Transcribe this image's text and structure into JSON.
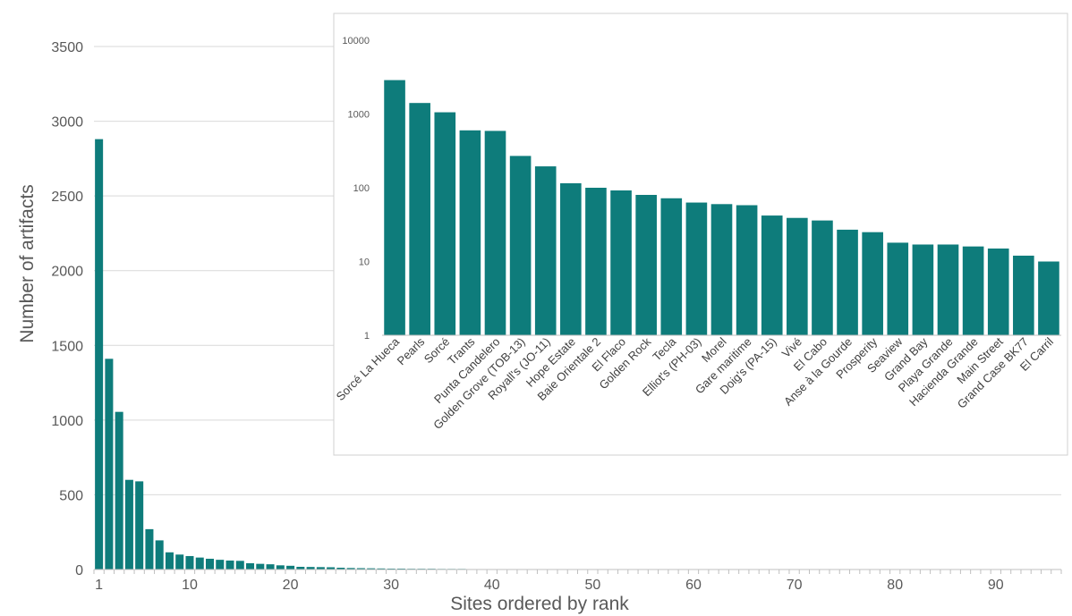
{
  "chart_data": [
    {
      "type": "bar",
      "title": "",
      "xlabel": "Sites ordered by rank",
      "ylabel": "Number of artifacts",
      "ylim": [
        0,
        3500
      ],
      "yticks": [
        0,
        500,
        1000,
        1500,
        2000,
        2500,
        3000,
        3500
      ],
      "xticks": [
        1,
        10,
        20,
        30,
        40,
        50,
        60,
        70,
        80,
        90
      ],
      "grid": "horizontal",
      "legend": "none",
      "color": "#0E7C7B",
      "x": [
        1,
        2,
        3,
        4,
        5,
        6,
        7,
        8,
        9,
        10,
        11,
        12,
        13,
        14,
        15,
        16,
        17,
        18,
        19,
        20,
        21,
        22,
        23,
        24,
        25,
        26,
        27,
        28,
        29,
        30,
        31,
        32,
        33,
        34,
        35,
        36,
        37,
        38,
        39,
        40,
        41,
        42,
        43,
        44,
        45,
        46,
        47,
        48,
        49,
        50,
        51,
        52,
        53,
        54,
        55,
        56,
        57,
        58,
        59,
        60,
        61,
        62,
        63,
        64,
        65,
        66,
        67,
        68,
        69,
        70,
        71,
        72,
        73,
        74,
        75,
        76,
        77,
        78,
        79,
        80,
        81,
        82,
        83,
        84,
        85,
        86,
        87,
        88,
        89,
        90,
        91,
        92,
        93,
        94,
        95,
        96
      ],
      "values": [
        2880,
        1410,
        1055,
        600,
        590,
        270,
        195,
        115,
        100,
        90,
        80,
        72,
        65,
        60,
        58,
        42,
        38,
        35,
        28,
        25,
        18,
        17,
        16,
        15,
        12,
        10,
        9,
        8,
        7,
        6,
        6,
        5,
        5,
        5,
        4,
        4,
        4,
        3,
        3,
        3,
        3,
        3,
        2,
        2,
        2,
        2,
        2,
        2,
        2,
        2,
        2,
        2,
        1,
        1,
        1,
        1,
        1,
        1,
        1,
        1,
        1,
        1,
        1,
        1,
        1,
        1,
        1,
        1,
        1,
        1,
        1,
        1,
        1,
        1,
        1,
        1,
        1,
        1,
        1,
        1,
        1,
        1,
        1,
        1,
        1,
        1,
        1,
        1,
        1,
        1,
        1,
        1,
        1,
        1,
        1,
        1
      ]
    },
    {
      "type": "bar",
      "title": "",
      "scale": "log",
      "ylim": [
        1,
        10000
      ],
      "yticks": [
        1,
        10,
        100,
        1000,
        10000
      ],
      "grid": "none",
      "legend": "none",
      "color": "#0E7C7B",
      "categories": [
        "Sorcé La Hueca",
        "Pearls",
        "Sorcé",
        "Trants",
        "Punta Candelero",
        "Golden Grove (TOB-13)",
        "Royall's (JO-11)",
        "Hope Estate",
        "Baie Orientale 2",
        "El Flaco",
        "Golden Rock",
        "Tecla",
        "Elliot's (PH-03)",
        "Morel",
        "Gare maritime",
        "Doig's (PA-15)",
        "Vivé",
        "El Cabo",
        "Anse à la Gourde",
        "Prosperity",
        "Seaview",
        "Grand Bay",
        "Playa Grande",
        "Hacienda Grande",
        "Main Street",
        "Grand Case BK77",
        "El Carril"
      ],
      "values": [
        2880,
        1410,
        1055,
        600,
        590,
        270,
        195,
        115,
        100,
        92,
        80,
        72,
        63,
        60,
        58,
        42,
        39,
        36,
        27,
        25,
        18,
        17,
        17,
        16,
        15,
        12,
        10
      ]
    }
  ]
}
